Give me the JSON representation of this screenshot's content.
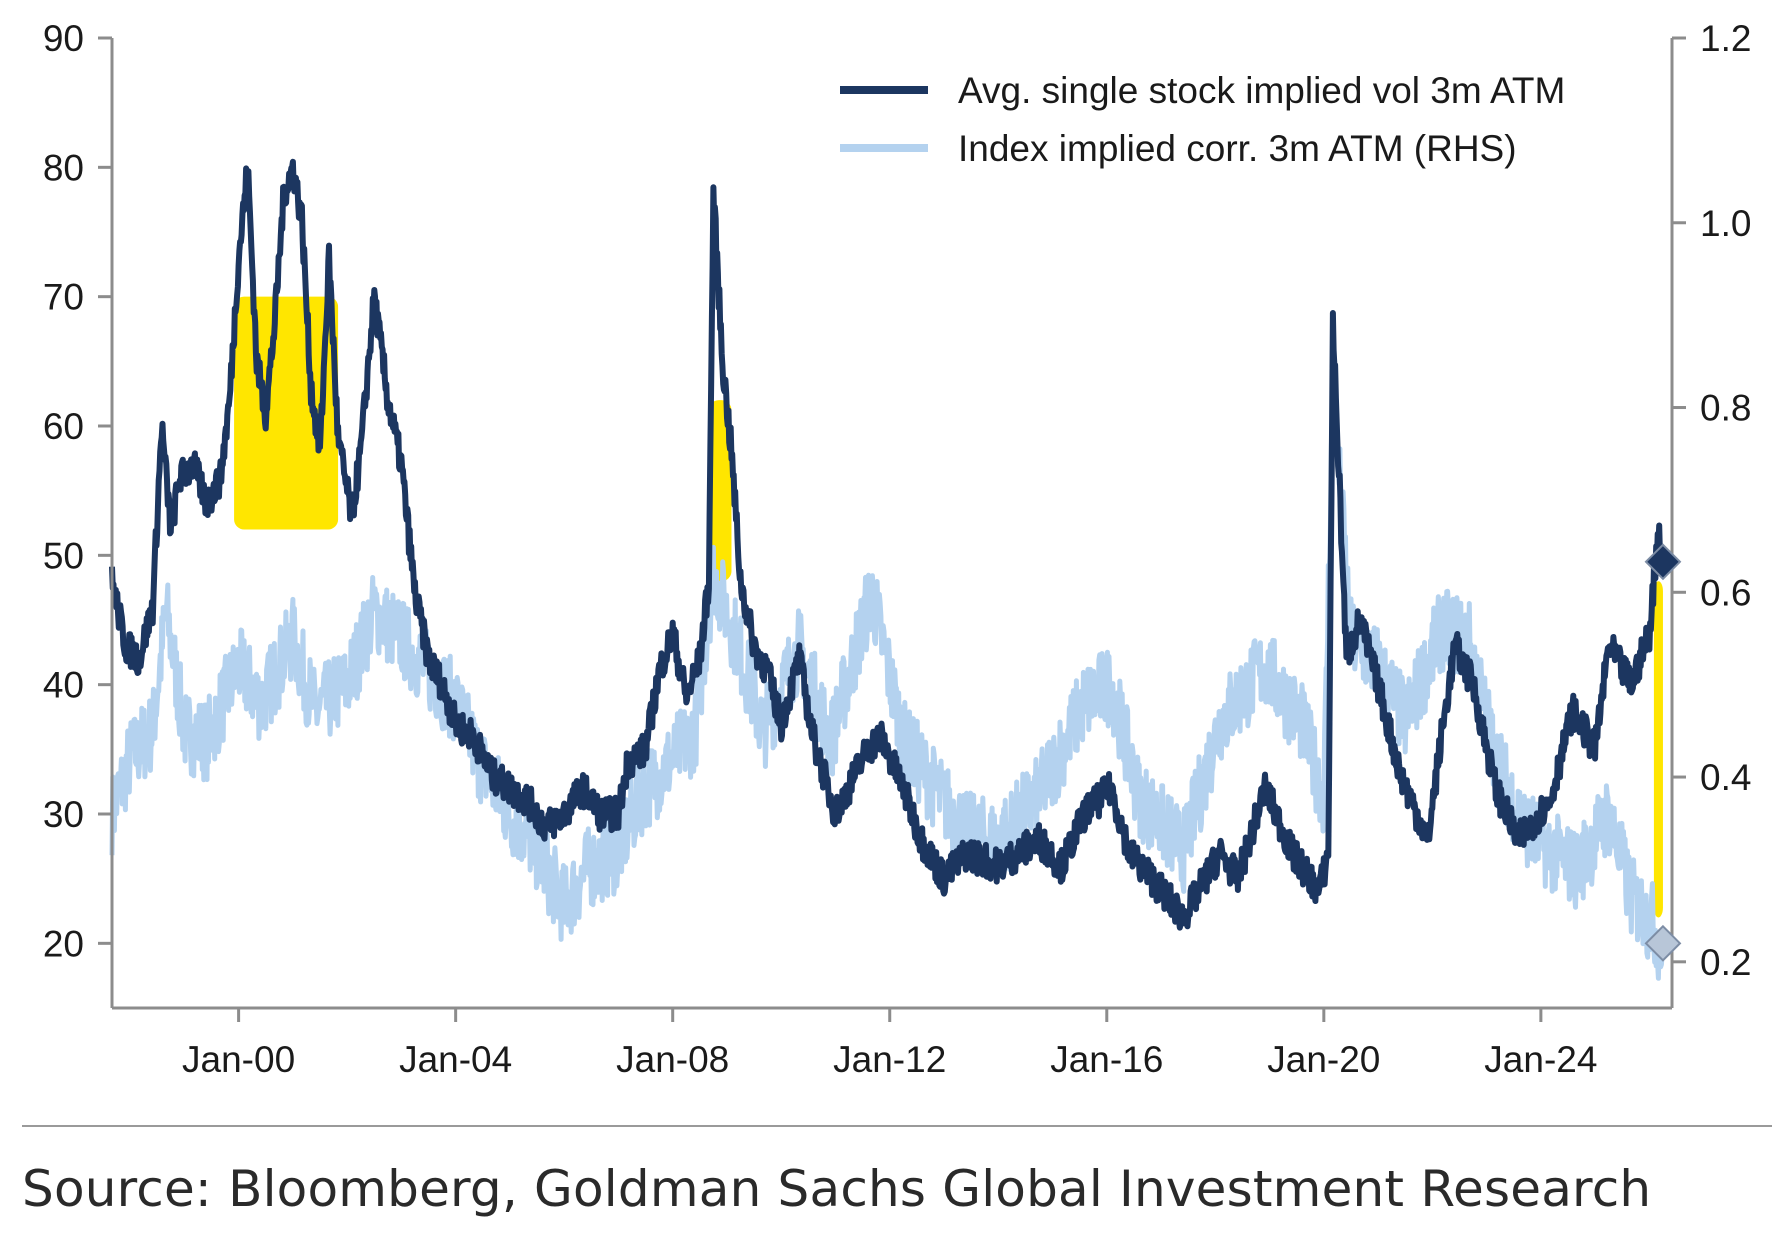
{
  "source": "Source: Bloomberg, Goldman Sachs Global Investment Research",
  "chart_data": {
    "type": "line",
    "xlabel": "",
    "ylabel_left": "",
    "ylabel_right": "",
    "x_range": [
      "1997-09",
      "2026-06"
    ],
    "x_ticks": [
      "Jan-00",
      "Jan-04",
      "Jan-08",
      "Jan-12",
      "Jan-16",
      "Jan-20",
      "Jan-24"
    ],
    "y_left_lim": [
      15,
      90
    ],
    "y_left_ticks": [
      "90",
      "80",
      "70",
      "60",
      "50",
      "40",
      "30",
      "20"
    ],
    "y_right_lim": [
      0.15,
      1.2
    ],
    "y_right_ticks": [
      "1.2",
      "1.0",
      "0.8",
      "0.6",
      "0.4",
      "0.2"
    ],
    "grid": false,
    "legend_position": "top-right",
    "series": [
      {
        "name": "Avg. single stock implied vol 3m ATM",
        "axis": "left",
        "color": "#1c3660",
        "points": [
          [
            "1997-09",
            48
          ],
          [
            "1997-12",
            43
          ],
          [
            "1998-03",
            42
          ],
          [
            "1998-06",
            46
          ],
          [
            "1998-08",
            60
          ],
          [
            "1998-10",
            52
          ],
          [
            "1998-12",
            56
          ],
          [
            "1999-03",
            57
          ],
          [
            "1999-06",
            54
          ],
          [
            "1999-09",
            56
          ],
          [
            "1999-11",
            62
          ],
          [
            "2000-01",
            73
          ],
          [
            "2000-03",
            80
          ],
          [
            "2000-05",
            65
          ],
          [
            "2000-07",
            61
          ],
          [
            "2000-09",
            68
          ],
          [
            "2000-11",
            78
          ],
          [
            "2001-01",
            80
          ],
          [
            "2001-03",
            76
          ],
          [
            "2001-05",
            63
          ],
          [
            "2001-07",
            58
          ],
          [
            "2001-09",
            73
          ],
          [
            "2001-11",
            59
          ],
          [
            "2002-02",
            53
          ],
          [
            "2002-04",
            58
          ],
          [
            "2002-07",
            70
          ],
          [
            "2002-10",
            62
          ],
          [
            "2003-01",
            57
          ],
          [
            "2003-04",
            47
          ],
          [
            "2003-07",
            42
          ],
          [
            "2003-10",
            40
          ],
          [
            "2004-01",
            37
          ],
          [
            "2004-05",
            36
          ],
          [
            "2004-09",
            33
          ],
          [
            "2005-01",
            32
          ],
          [
            "2005-05",
            31
          ],
          [
            "2005-09",
            29
          ],
          [
            "2006-01",
            30
          ],
          [
            "2006-05",
            32
          ],
          [
            "2006-09",
            30
          ],
          [
            "2007-01",
            30
          ],
          [
            "2007-03",
            34
          ],
          [
            "2007-07",
            35
          ],
          [
            "2007-10",
            41
          ],
          [
            "2008-01",
            44
          ],
          [
            "2008-04",
            39
          ],
          [
            "2008-07",
            42
          ],
          [
            "2008-09",
            48
          ],
          [
            "2008-10",
            78
          ],
          [
            "2008-12",
            65
          ],
          [
            "2009-02",
            58
          ],
          [
            "2009-04",
            48
          ],
          [
            "2009-07",
            43
          ],
          [
            "2009-10",
            41
          ],
          [
            "2010-01",
            37
          ],
          [
            "2010-05",
            42
          ],
          [
            "2010-08",
            36
          ],
          [
            "2011-01",
            30
          ],
          [
            "2011-08",
            35
          ],
          [
            "2011-11",
            36
          ],
          [
            "2012-04",
            32
          ],
          [
            "2012-08",
            28
          ],
          [
            "2013-01",
            25
          ],
          [
            "2013-06",
            27
          ],
          [
            "2014-01",
            26
          ],
          [
            "2014-10",
            28
          ],
          [
            "2015-03",
            26
          ],
          [
            "2015-08",
            30
          ],
          [
            "2016-02",
            32
          ],
          [
            "2016-06",
            27
          ],
          [
            "2016-11",
            25
          ],
          [
            "2017-06",
            22
          ],
          [
            "2018-02",
            27
          ],
          [
            "2018-06",
            25
          ],
          [
            "2018-12",
            32
          ],
          [
            "2019-06",
            27
          ],
          [
            "2019-12",
            24
          ],
          [
            "2020-02",
            27
          ],
          [
            "2020-03",
            68
          ],
          [
            "2020-06",
            42
          ],
          [
            "2020-09",
            45
          ],
          [
            "2021-01",
            40
          ],
          [
            "2021-06",
            33
          ],
          [
            "2021-12",
            28
          ],
          [
            "2022-03",
            36
          ],
          [
            "2022-06",
            43
          ],
          [
            "2022-10",
            40
          ],
          [
            "2023-03",
            32
          ],
          [
            "2023-08",
            28
          ],
          [
            "2024-03",
            31
          ],
          [
            "2024-08",
            38
          ],
          [
            "2025-01",
            35
          ],
          [
            "2025-04",
            43
          ],
          [
            "2025-09",
            40
          ],
          [
            "2026-01",
            44
          ],
          [
            "2026-03",
            52
          ],
          [
            "2026-04",
            49
          ]
        ]
      },
      {
        "name": "Index implied corr. 3m ATM (RHS)",
        "axis": "right",
        "color": "#b4d2ef",
        "points": [
          [
            "1997-09",
            0.36
          ],
          [
            "1998-01",
            0.42
          ],
          [
            "1998-06",
            0.45
          ],
          [
            "1998-09",
            0.58
          ],
          [
            "1999-01",
            0.45
          ],
          [
            "1999-06",
            0.44
          ],
          [
            "2000-01",
            0.52
          ],
          [
            "2000-06",
            0.48
          ],
          [
            "2001-01",
            0.55
          ],
          [
            "2001-06",
            0.47
          ],
          [
            "2002-01",
            0.5
          ],
          [
            "2002-07",
            0.58
          ],
          [
            "2003-01",
            0.55
          ],
          [
            "2003-06",
            0.52
          ],
          [
            "2004-01",
            0.48
          ],
          [
            "2004-06",
            0.42
          ],
          [
            "2005-01",
            0.36
          ],
          [
            "2005-06",
            0.33
          ],
          [
            "2006-01",
            0.26
          ],
          [
            "2006-06",
            0.3
          ],
          [
            "2007-01",
            0.32
          ],
          [
            "2007-06",
            0.38
          ],
          [
            "2008-01",
            0.42
          ],
          [
            "2008-06",
            0.45
          ],
          [
            "2008-10",
            0.62
          ],
          [
            "2009-03",
            0.55
          ],
          [
            "2009-09",
            0.45
          ],
          [
            "2010-05",
            0.54
          ],
          [
            "2010-12",
            0.44
          ],
          [
            "2011-09",
            0.6
          ],
          [
            "2012-04",
            0.44
          ],
          [
            "2012-12",
            0.38
          ],
          [
            "2013-06",
            0.34
          ],
          [
            "2014-01",
            0.33
          ],
          [
            "2014-10",
            0.38
          ],
          [
            "2015-08",
            0.48
          ],
          [
            "2016-02",
            0.5
          ],
          [
            "2016-08",
            0.38
          ],
          [
            "2017-06",
            0.32
          ],
          [
            "2018-02",
            0.46
          ],
          [
            "2018-12",
            0.52
          ],
          [
            "2019-08",
            0.46
          ],
          [
            "2020-01",
            0.38
          ],
          [
            "2020-03",
            0.82
          ],
          [
            "2020-07",
            0.55
          ],
          [
            "2021-01",
            0.52
          ],
          [
            "2021-07",
            0.46
          ],
          [
            "2022-03",
            0.56
          ],
          [
            "2022-09",
            0.55
          ],
          [
            "2023-03",
            0.42
          ],
          [
            "2023-09",
            0.35
          ],
          [
            "2024-03",
            0.32
          ],
          [
            "2024-09",
            0.3
          ],
          [
            "2025-04",
            0.36
          ],
          [
            "2025-09",
            0.27
          ],
          [
            "2026-02",
            0.24
          ],
          [
            "2026-04",
            0.21
          ]
        ]
      }
    ],
    "end_markers": [
      {
        "series": "Avg. single stock implied vol 3m ATM",
        "x": "2026-04",
        "y": 49.5,
        "axis": "left",
        "shape": "diamond",
        "color": "#1c3660"
      },
      {
        "series": "Index implied corr. 3m ATM (RHS)",
        "x": "2026-04",
        "y": 0.22,
        "axis": "right",
        "shape": "diamond",
        "color": "#b8c6d8"
      }
    ],
    "highlights": [
      {
        "color": "#ffe600",
        "x": [
          "1999-12",
          "2001-11"
        ],
        "y_left": [
          52,
          70
        ]
      },
      {
        "color": "#ffe600",
        "x": [
          "2008-09",
          "2009-02"
        ],
        "y_left": [
          48,
          62
        ]
      },
      {
        "color": "#ffe600",
        "x": [
          "2026-02",
          "2026-04"
        ],
        "y_left": [
          22,
          48
        ]
      }
    ]
  }
}
